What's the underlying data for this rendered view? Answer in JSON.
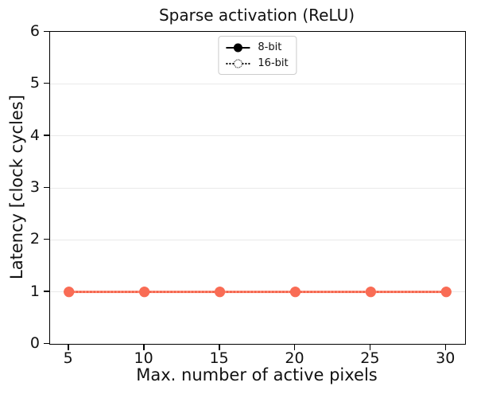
{
  "chart_data": {
    "type": "line",
    "title": "Sparse activation (ReLU)",
    "xlabel": "Max. number of active pixels",
    "ylabel": "Latency [clock cycles]",
    "x": [
      5,
      10,
      15,
      20,
      25,
      30
    ],
    "series": [
      {
        "name": "8-bit",
        "values": [
          1,
          1,
          1,
          1,
          1,
          1
        ],
        "linestyle": "solid",
        "marker": "filled-circle"
      },
      {
        "name": "16-bit",
        "values": [
          1,
          1,
          1,
          1,
          1,
          1
        ],
        "linestyle": "dotted",
        "marker": "open-circle"
      }
    ],
    "xticks": [
      5,
      10,
      15,
      20,
      25,
      30
    ],
    "yticks": [
      0,
      1,
      2,
      3,
      4,
      5,
      6
    ],
    "xlim": [
      3.75,
      31.25
    ],
    "ylim": [
      0,
      6
    ],
    "grid": "horizontal",
    "legend_position": "upper center",
    "colors": {
      "series_solid_line": "#fc8570",
      "series_dotted_overlay": "#f2573d",
      "marker_fill": "#f96c55",
      "legend_handles": "#000000",
      "gridline": "#e9e9e9",
      "spine": "#000000",
      "background": "#ffffff"
    }
  }
}
